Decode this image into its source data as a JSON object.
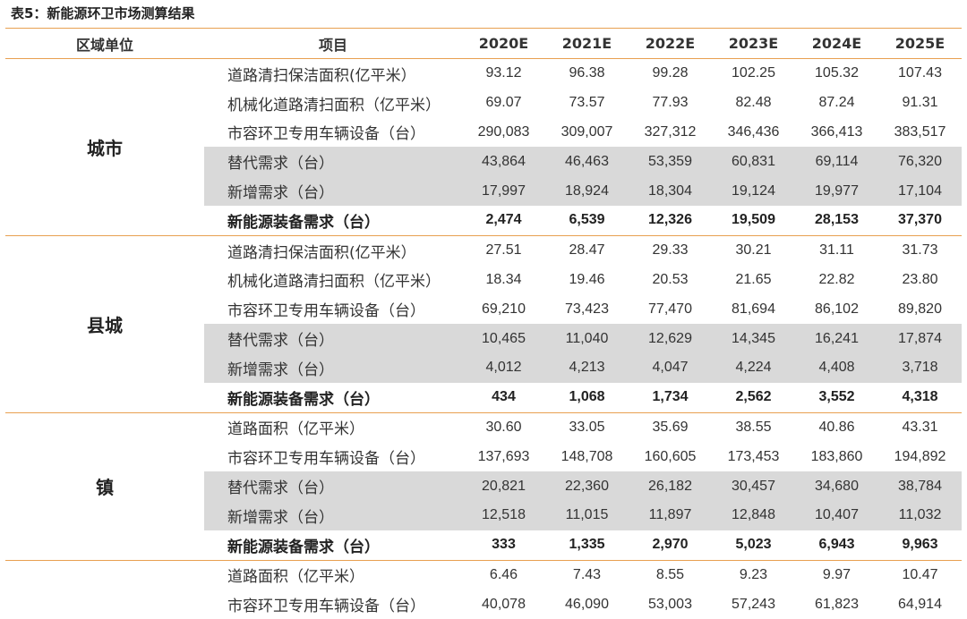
{
  "caption": "表5：新能源环卫市场测算结果",
  "headers": [
    "区域单位",
    "项目",
    "2020E",
    "2021E",
    "2022E",
    "2023E",
    "2024E",
    "2025E"
  ],
  "groups": [
    {
      "region": "城市",
      "rows": [
        {
          "label": "道路清扫保洁面积(亿平米）",
          "values": [
            "93.12",
            "96.38",
            "99.28",
            "102.25",
            "105.32",
            "107.43"
          ],
          "shade": false,
          "bold": false
        },
        {
          "label": "机械化道路清扫面积（亿平米）",
          "values": [
            "69.07",
            "73.57",
            "77.93",
            "82.48",
            "87.24",
            "91.31"
          ],
          "shade": false,
          "bold": false
        },
        {
          "label": "市容环卫专用车辆设备（台）",
          "values": [
            "290,083",
            "309,007",
            "327,312",
            "346,436",
            "366,413",
            "383,517"
          ],
          "shade": false,
          "bold": false
        },
        {
          "label": "替代需求（台）",
          "values": [
            "43,864",
            "46,463",
            "53,359",
            "60,831",
            "69,114",
            "76,320"
          ],
          "shade": true,
          "bold": false
        },
        {
          "label": "新增需求（台）",
          "values": [
            "17,997",
            "18,924",
            "18,304",
            "19,124",
            "19,977",
            "17,104"
          ],
          "shade": true,
          "bold": false
        },
        {
          "label": "新能源装备需求（台）",
          "values": [
            "2,474",
            "6,539",
            "12,326",
            "19,509",
            "28,153",
            "37,370"
          ],
          "shade": false,
          "bold": true
        }
      ]
    },
    {
      "region": "县城",
      "rows": [
        {
          "label": "道路清扫保洁面积(亿平米）",
          "values": [
            "27.51",
            "28.47",
            "29.33",
            "30.21",
            "31.11",
            "31.73"
          ],
          "shade": false,
          "bold": false
        },
        {
          "label": "机械化道路清扫面积（亿平米）",
          "values": [
            "18.34",
            "19.46",
            "20.53",
            "21.65",
            "22.82",
            "23.80"
          ],
          "shade": false,
          "bold": false
        },
        {
          "label": "市容环卫专用车辆设备（台）",
          "values": [
            "69,210",
            "73,423",
            "77,470",
            "81,694",
            "86,102",
            "89,820"
          ],
          "shade": false,
          "bold": false
        },
        {
          "label": "替代需求（台）",
          "values": [
            "10,465",
            "11,040",
            "12,629",
            "14,345",
            "16,241",
            "17,874"
          ],
          "shade": true,
          "bold": false
        },
        {
          "label": "新增需求（台）",
          "values": [
            "4,012",
            "4,213",
            "4,047",
            "4,224",
            "4,408",
            "3,718"
          ],
          "shade": true,
          "bold": false
        },
        {
          "label": "新能源装备需求（台）",
          "values": [
            "434",
            "1,068",
            "1,734",
            "2,562",
            "3,552",
            "4,318"
          ],
          "shade": false,
          "bold": true
        }
      ]
    },
    {
      "region": "镇",
      "rows": [
        {
          "label": "道路面积（亿平米）",
          "values": [
            "30.60",
            "33.05",
            "35.69",
            "38.55",
            "40.86",
            "43.31"
          ],
          "shade": false,
          "bold": false
        },
        {
          "label": "市容环卫专用车辆设备（台）",
          "values": [
            "137,693",
            "148,708",
            "160,605",
            "173,453",
            "183,860",
            "194,892"
          ],
          "shade": false,
          "bold": false
        },
        {
          "label": "替代需求（台）",
          "values": [
            "20,821",
            "22,360",
            "26,182",
            "30,457",
            "34,680",
            "38,784"
          ],
          "shade": true,
          "bold": false
        },
        {
          "label": "新增需求（台）",
          "values": [
            "12,518",
            "11,015",
            "11,897",
            "12,848",
            "10,407",
            "11,032"
          ],
          "shade": true,
          "bold": false
        },
        {
          "label": "新能源装备需求（台）",
          "values": [
            "333",
            "1,335",
            "2,970",
            "5,023",
            "6,943",
            "9,963"
          ],
          "shade": false,
          "bold": true
        }
      ]
    },
    {
      "region": "",
      "rows": [
        {
          "label": "道路面积（亿平米）",
          "values": [
            "6.46",
            "7.43",
            "8.55",
            "9.23",
            "9.97",
            "10.47"
          ],
          "shade": false,
          "bold": false
        },
        {
          "label": "市容环卫专用车辆设备（台）",
          "values": [
            "40,078",
            "46,090",
            "53,003",
            "57,243",
            "61,823",
            "64,914"
          ],
          "shade": false,
          "bold": false
        }
      ]
    }
  ],
  "colors": {
    "rule": "#e8a050",
    "shade": "#d9d9d9",
    "text": "#333333"
  }
}
